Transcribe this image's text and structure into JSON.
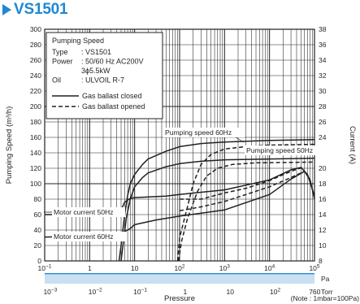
{
  "title": "VS1501",
  "colors": {
    "accent": "#1e88d2",
    "band": "#c9dff2",
    "grid": "#231f20"
  },
  "chart_data": {
    "type": "line",
    "x_scale": "log",
    "x_units": "Pa",
    "xlim": [
      0.1,
      100000
    ],
    "x_ticks": [
      {
        "v": 0.1,
        "label_base": "10",
        "label_exp": "−1"
      },
      {
        "v": 1,
        "label": "1"
      },
      {
        "v": 10,
        "label": "10"
      },
      {
        "v": 100,
        "label_base": "10",
        "label_exp": "2"
      },
      {
        "v": 1000,
        "label_base": "10",
        "label_exp": "3"
      },
      {
        "v": 10000,
        "label_base": "10",
        "label_exp": "4"
      },
      {
        "v": 100000,
        "label_base": "10",
        "label_exp": "5"
      }
    ],
    "x_unit_label": "Pa",
    "torr_ticks": [
      {
        "pa": 0.1333,
        "label_base": "10",
        "label_exp": "−3"
      },
      {
        "pa": 1.333,
        "label_base": "10",
        "label_exp": "−2"
      },
      {
        "pa": 13.33,
        "label_base": "10",
        "label_exp": "−1"
      },
      {
        "pa": 133.3,
        "label": "1"
      },
      {
        "pa": 1333,
        "label": "10"
      },
      {
        "pa": 13330,
        "label_base": "10",
        "label_exp": "2"
      },
      {
        "pa": 101300,
        "label": "760"
      }
    ],
    "torr_unit_label": "Torr",
    "xlabel": "Pressure",
    "note": "(Note : 1mbar=100Pa)",
    "ylabel_left": "Pumping Speed (m³/h)",
    "ylim_left": [
      0,
      300
    ],
    "yticks_left": [
      0,
      20,
      40,
      60,
      80,
      100,
      120,
      140,
      160,
      180,
      200,
      220,
      240,
      260,
      280,
      300
    ],
    "ylabel_right": "Current (A)",
    "ylim_right": [
      8,
      38
    ],
    "yticks_right": [
      8,
      10,
      12,
      14,
      16,
      18,
      20,
      22,
      24,
      26,
      28,
      30,
      32,
      34,
      36,
      38
    ],
    "legend": {
      "heading": "Pumping Speed",
      "rows": [
        {
          "key": "Type",
          "value": ": VS1501"
        },
        {
          "key": "Power",
          "value": ": 50/60 Hz AC200V"
        },
        {
          "key": "",
          "value": "3ϕ5.5kW"
        },
        {
          "key": "Oil",
          "value": ": ULVOIL R-7"
        }
      ],
      "solid_label": "Gas ballast closed",
      "dashed_label": "Gas ballast opened",
      "position": "top-left"
    },
    "annotations": [
      "Pumping speed 60Hz",
      "Pumping speed 50Hz",
      "Motor current 50Hz",
      "Motor current 60Hz"
    ],
    "series": [
      {
        "name": "Pumping speed 60Hz",
        "style": "solid",
        "axis": "left",
        "points": [
          [
            4.5,
            0
          ],
          [
            5,
            20
          ],
          [
            6,
            60
          ],
          [
            7,
            85
          ],
          [
            8,
            100
          ],
          [
            10,
            112
          ],
          [
            15,
            125
          ],
          [
            20,
            132
          ],
          [
            50,
            142
          ],
          [
            100,
            148
          ],
          [
            300,
            152
          ],
          [
            1000,
            154
          ],
          [
            10000,
            156
          ],
          [
            100000,
            157
          ]
        ]
      },
      {
        "name": "Pumping speed 50Hz",
        "style": "solid",
        "axis": "left",
        "points": [
          [
            5,
            0
          ],
          [
            5.5,
            20
          ],
          [
            6.5,
            55
          ],
          [
            8,
            80
          ],
          [
            10,
            96
          ],
          [
            15,
            108
          ],
          [
            20,
            114
          ],
          [
            50,
            122
          ],
          [
            100,
            126
          ],
          [
            300,
            129
          ],
          [
            1000,
            131
          ],
          [
            10000,
            132
          ],
          [
            100000,
            133
          ]
        ]
      },
      {
        "name": "Pumping speed 60Hz, gas ballast opened",
        "style": "dashed",
        "axis": "left",
        "points": [
          [
            90,
            0
          ],
          [
            100,
            30
          ],
          [
            150,
            70
          ],
          [
            200,
            100
          ],
          [
            300,
            125
          ],
          [
            500,
            138
          ],
          [
            1000,
            145
          ],
          [
            3000,
            148
          ],
          [
            10000,
            150
          ],
          [
            100000,
            151
          ]
        ]
      },
      {
        "name": "Pumping speed 50Hz, gas ballast opened",
        "style": "dashed",
        "axis": "left",
        "points": [
          [
            95,
            0
          ],
          [
            110,
            25
          ],
          [
            150,
            55
          ],
          [
            250,
            90
          ],
          [
            400,
            110
          ],
          [
            700,
            120
          ],
          [
            1500,
            125
          ],
          [
            5000,
            127
          ],
          [
            100000,
            128
          ]
        ]
      },
      {
        "name": "Motor current 50Hz",
        "style": "solid",
        "axis": "right",
        "points": [
          [
            0.1,
            14
          ],
          [
            1,
            14
          ],
          [
            4,
            14.1
          ],
          [
            5,
            14.6
          ],
          [
            6,
            15.6
          ],
          [
            8,
            16.1
          ],
          [
            10,
            16.2
          ],
          [
            50,
            16.4
          ],
          [
            100,
            16.6
          ],
          [
            1000,
            17.2
          ],
          [
            10000,
            18.5
          ],
          [
            30000,
            19.8
          ],
          [
            50000,
            20.1
          ],
          [
            70000,
            19.2
          ],
          [
            100000,
            16.4
          ]
        ]
      },
      {
        "name": "Motor current 60Hz",
        "style": "solid",
        "axis": "right",
        "points": [
          [
            0.1,
            11.1
          ],
          [
            1,
            11.2
          ],
          [
            4,
            11.3
          ],
          [
            6,
            11.8
          ],
          [
            8,
            12.2
          ],
          [
            10,
            12.7
          ],
          [
            30,
            13.3
          ],
          [
            100,
            13.8
          ],
          [
            1000,
            14.6
          ],
          [
            10000,
            16.6
          ],
          [
            30000,
            18.6
          ],
          [
            60000,
            19.6
          ],
          [
            80000,
            18.5
          ],
          [
            100000,
            16
          ]
        ]
      },
      {
        "name": "Motor current 50Hz, gas ballast opened",
        "style": "dashed",
        "axis": "right",
        "points": [
          [
            100,
            16
          ],
          [
            300,
            16
          ],
          [
            1000,
            16.8
          ],
          [
            3000,
            17.4
          ],
          [
            10000,
            18.4
          ],
          [
            30000,
            19.6
          ],
          [
            60000,
            20.2
          ]
        ]
      },
      {
        "name": "Motor current 60Hz, gas ballast opened",
        "style": "dashed",
        "axis": "right",
        "points": [
          [
            100,
            14.5
          ],
          [
            300,
            15
          ],
          [
            1000,
            15.7
          ],
          [
            3000,
            16.6
          ],
          [
            10000,
            17.6
          ],
          [
            30000,
            18.8
          ],
          [
            60000,
            19.6
          ]
        ]
      }
    ]
  }
}
